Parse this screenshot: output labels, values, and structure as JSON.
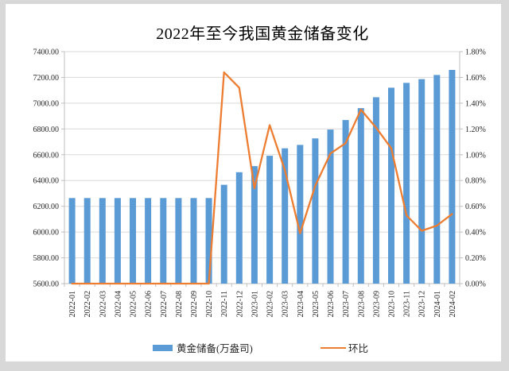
{
  "window": {
    "background_color": "#d8d8d8",
    "card_color": "#ffffff"
  },
  "chart_data": {
    "type": "combo-bar-line",
    "title": "2022年至今我国黄金储备变化",
    "categories": [
      "2022-01",
      "2022-02",
      "2022-03",
      "2022-04",
      "2022-05",
      "2022-06",
      "2022-07",
      "2022-08",
      "2022-09",
      "2022-10",
      "2022-11",
      "2022-12",
      "2023-01",
      "2023-02",
      "2023-03",
      "2023-04",
      "2023-05",
      "2023-06",
      "2023-07",
      "2023-08",
      "2023-09",
      "2023-10",
      "2023-11",
      "2023-12",
      "2024-01",
      "2024-02"
    ],
    "series": [
      {
        "name": "黄金储备(万盎司)",
        "type": "bar",
        "axis": "left",
        "color": "#5B9BD5",
        "values": [
          6264,
          6264,
          6264,
          6264,
          6264,
          6264,
          6264,
          6264,
          6264,
          6264,
          6367,
          6464,
          6512,
          6592,
          6650,
          6676,
          6727,
          6795,
          6869,
          6962,
          7046,
          7120,
          7158,
          7187,
          7219,
          7258
        ]
      },
      {
        "name": "环比",
        "type": "line",
        "axis": "right",
        "color": "#ED7D31",
        "values": [
          0,
          0,
          0,
          0,
          0,
          0,
          0,
          0,
          0,
          0,
          1.64,
          1.52,
          0.74,
          1.23,
          0.88,
          0.39,
          0.76,
          1.01,
          1.09,
          1.35,
          1.21,
          1.05,
          0.53,
          0.41,
          0.45,
          0.54
        ]
      }
    ],
    "left_axis": {
      "min": 5600,
      "max": 7400,
      "step": 200,
      "tick_labels": [
        "5600.00",
        "5800.00",
        "6000.00",
        "6200.00",
        "6400.00",
        "6600.00",
        "6800.00",
        "7000.00",
        "7200.00",
        "7400.00"
      ]
    },
    "right_axis": {
      "min": 0,
      "max": 1.8,
      "step": 0.2,
      "tick_labels": [
        "0.00%",
        "0.20%",
        "0.40%",
        "0.60%",
        "0.80%",
        "1.00%",
        "1.20%",
        "1.40%",
        "1.60%",
        "1.80%"
      ]
    },
    "grid": true,
    "legend_position": "bottom",
    "colors": {
      "gridline": "#D9D9D9",
      "axis_line": "#BFBFBF",
      "tick_text": "#262626",
      "title_text": "#000000"
    }
  }
}
